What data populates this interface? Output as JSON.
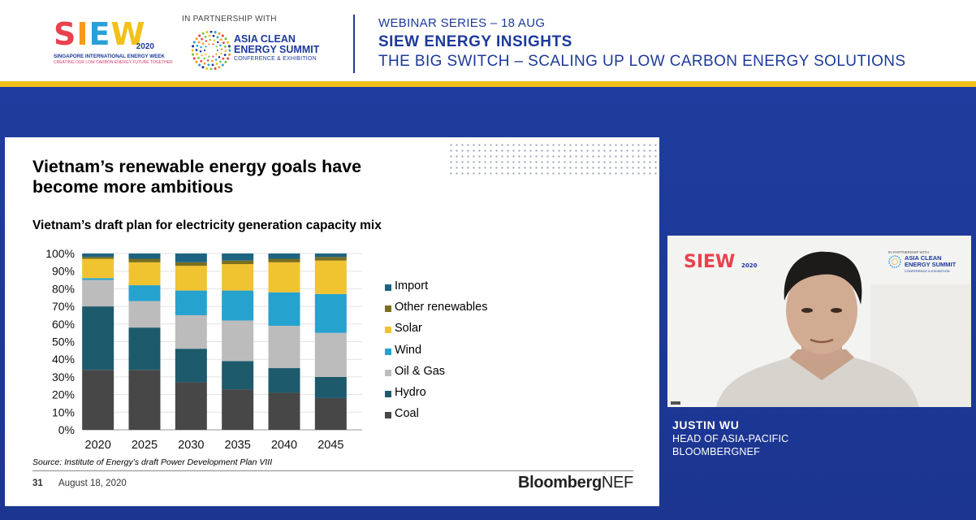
{
  "header": {
    "siew_logo": {
      "letters": [
        "S",
        "I",
        "E",
        "W"
      ],
      "year": "2020",
      "subtitle": "SINGAPORE INTERNATIONAL ENERGY WEEK",
      "tagline": "CREATING OUR LOW CARBON ENERGY FUTURE TOGETHER"
    },
    "partnership_label": "IN PARTNERSHIP WITH",
    "partner_logo": {
      "line1": "ASIA CLEAN",
      "line2": "ENERGY SUMMIT",
      "line3": "CONFERENCE & EXHIBITION"
    },
    "webinar_series": "WEBINAR SERIES – 18 AUG",
    "series_title": "SIEW ENERGY INSIGHTS",
    "session_title": "THE BIG SWITCH – SCALING UP LOW CARBON ENERGY SOLUTIONS"
  },
  "slide": {
    "title": "Vietnam’s renewable energy goals have become more ambitious",
    "chart_title": "Vietnam’s draft plan for electricity generation capacity mix",
    "source": "Source: Institute of Energy’s draft Power Development Plan VIII",
    "slide_number": "31",
    "date": "August 18, 2020",
    "brand_bold": "Bloomberg",
    "brand_light": "NEF"
  },
  "chart_data": {
    "type": "bar",
    "stacked": true,
    "categories": [
      "2020",
      "2025",
      "2030",
      "2035",
      "2040",
      "2045"
    ],
    "y_ticks": [
      "0%",
      "10%",
      "20%",
      "30%",
      "40%",
      "50%",
      "60%",
      "70%",
      "80%",
      "90%",
      "100%"
    ],
    "ylim": [
      0,
      100
    ],
    "legend_position": "right",
    "series": [
      {
        "name": "Coal",
        "color": "#474747",
        "values": [
          34,
          34,
          27,
          23,
          21,
          18
        ]
      },
      {
        "name": "Hydro",
        "color": "#1c5a6c",
        "values": [
          36,
          24,
          19,
          16,
          14,
          12
        ]
      },
      {
        "name": "Oil & Gas",
        "color": "#bcbcbc",
        "values": [
          15,
          15,
          19,
          23,
          24,
          25
        ]
      },
      {
        "name": "Wind",
        "color": "#26a2cf",
        "values": [
          1,
          9,
          14,
          17,
          19,
          22
        ]
      },
      {
        "name": "Solar",
        "color": "#f0c330",
        "values": [
          11,
          13,
          14,
          15,
          17,
          19
        ]
      },
      {
        "name": "Other renewables",
        "color": "#7a6f1e",
        "values": [
          1,
          2,
          2,
          2,
          2,
          2
        ]
      },
      {
        "name": "Import",
        "color": "#1d6382",
        "values": [
          2,
          3,
          5,
          4,
          3,
          2
        ]
      }
    ],
    "legend_order": [
      "Import",
      "Other renewables",
      "Solar",
      "Wind",
      "Oil & Gas",
      "Hydro",
      "Coal"
    ]
  },
  "video": {
    "siew_text": "SIEW",
    "siew_year": "2020",
    "partner_label": "IN PARTNERSHIP WITH",
    "partner_line1": "ASIA CLEAN",
    "partner_line2": "ENERGY SUMMIT",
    "partner_line3": "CONFERENCE & EXHIBITION"
  },
  "speaker": {
    "name": "JUSTIN WU",
    "role": "HEAD OF ASIA-PACIFIC",
    "organization": "BLOOMBERGNEF"
  },
  "colors": {
    "brand_blue": "#1d3a9a",
    "accent_gold": "#f2c019",
    "siew_letter_colors": [
      "#e9414f",
      "#f49a1f",
      "#2aa0d8",
      "#f2c019"
    ]
  }
}
